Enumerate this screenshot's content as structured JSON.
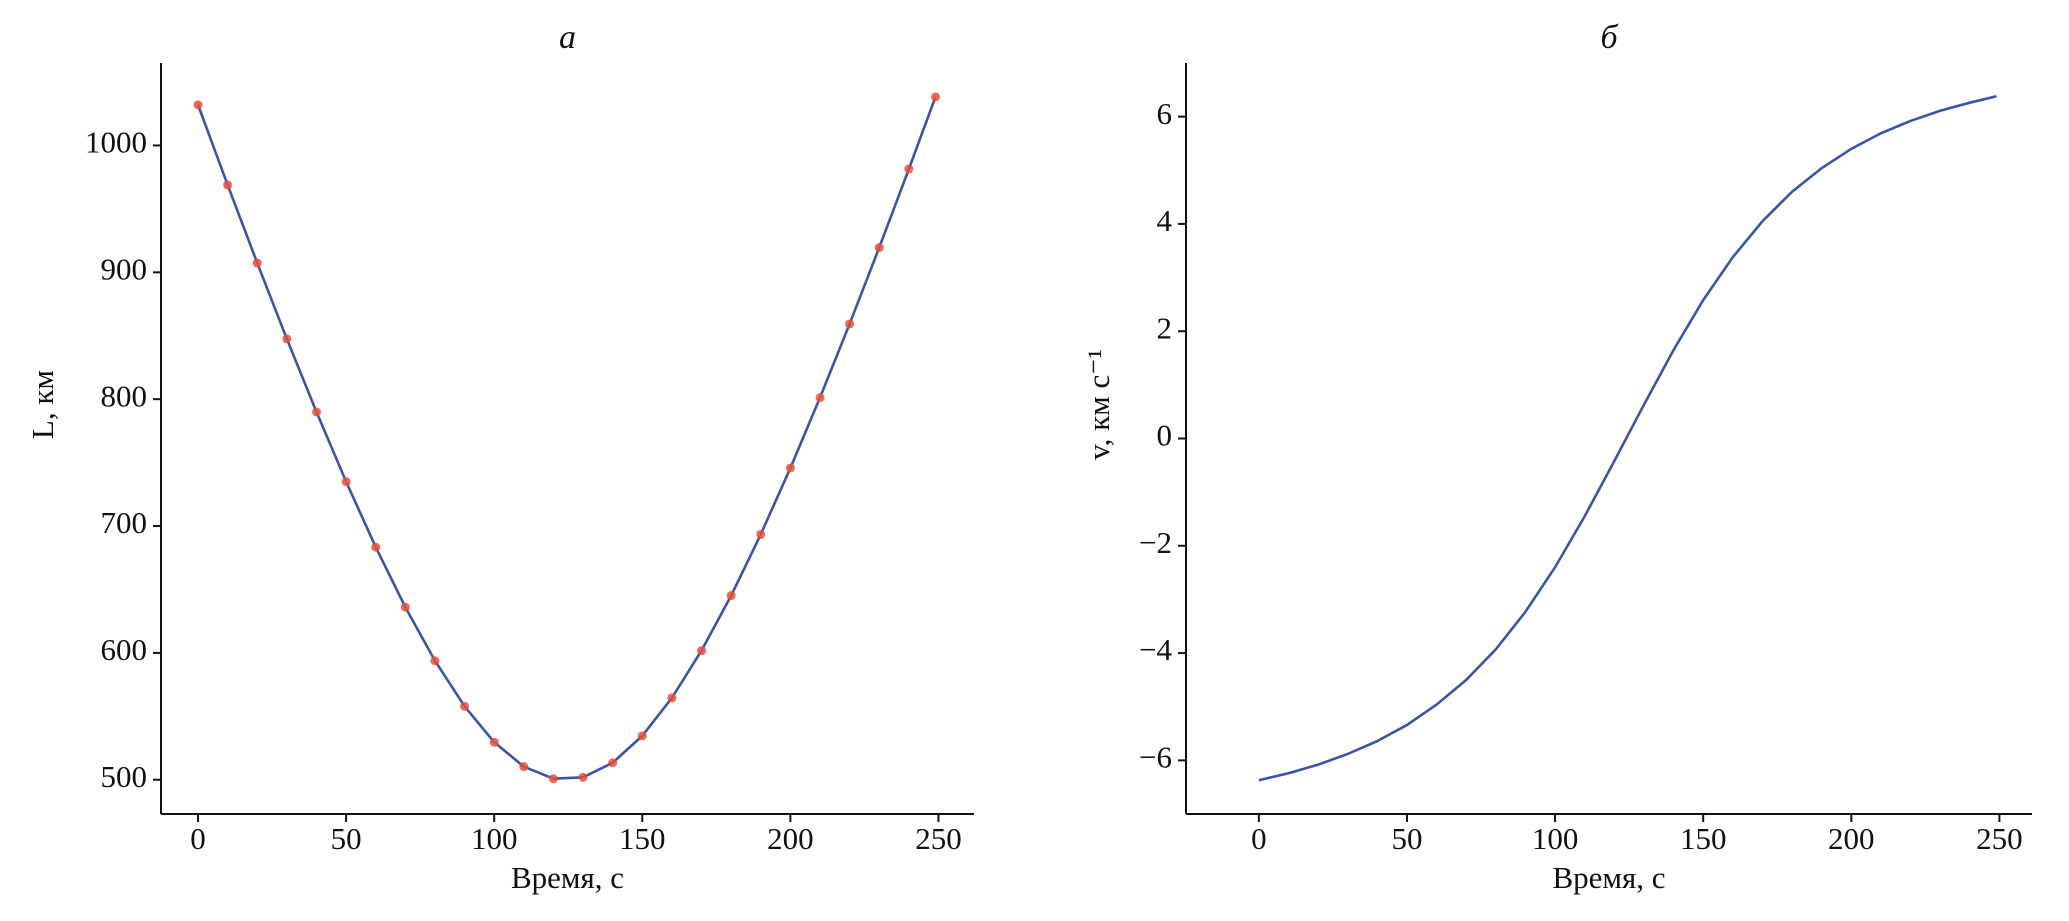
{
  "chart_data": [
    {
      "type": "line",
      "title": "а",
      "xlabel": "Время, с",
      "ylabel": "L, км",
      "x": [
        0,
        10,
        20,
        30,
        40,
        50,
        60,
        70,
        80,
        90,
        100,
        110,
        120,
        130,
        140,
        150,
        160,
        170,
        180,
        190,
        200,
        210,
        220,
        230,
        240,
        249
      ],
      "series": [
        {
          "color": "#3a55a6",
          "marker_color": "#e8503a",
          "values": [
            1032.0,
            968.9,
            907.3,
            847.5,
            789.9,
            735.0,
            683.4,
            636.0,
            593.8,
            557.9,
            529.6,
            510.3,
            500.8,
            501.9,
            513.4,
            534.6,
            564.5,
            601.8,
            645.1,
            693.4,
            745.7,
            801.2,
            859.3,
            919.5,
            981.4,
            1038.3
          ]
        }
      ],
      "xlim": [
        -12.5,
        262
      ],
      "ylim": [
        473,
        1065
      ],
      "xticks": [
        0,
        50,
        100,
        150,
        200,
        250
      ],
      "yticks": [
        500,
        600,
        700,
        800,
        900,
        1000
      ]
    },
    {
      "type": "line",
      "title": "б",
      "xlabel": "Время, с",
      "ylabel": "v, км с⁻¹",
      "x": [
        0,
        10,
        20,
        30,
        40,
        50,
        60,
        70,
        80,
        90,
        100,
        110,
        120,
        130,
        140,
        150,
        160,
        170,
        180,
        190,
        200,
        210,
        220,
        230,
        240,
        249
      ],
      "series": [
        {
          "color": "#3a55a6",
          "values": [
            -6.37,
            -6.24,
            -6.08,
            -5.88,
            -5.64,
            -5.34,
            -4.96,
            -4.5,
            -3.93,
            -3.23,
            -2.4,
            -1.45,
            -0.42,
            0.63,
            1.65,
            2.58,
            3.38,
            4.05,
            4.6,
            5.04,
            5.4,
            5.69,
            5.92,
            6.11,
            6.26,
            6.38
          ]
        }
      ],
      "xlim": [
        -24.6,
        261
      ],
      "ylim": [
        -7,
        7
      ],
      "xticks": [
        0,
        50,
        100,
        150,
        200,
        250
      ],
      "yticks": [
        {
          "value": -6,
          "label": "−6"
        },
        {
          "value": -4,
          "label": "−4"
        },
        {
          "value": -2,
          "label": "−2"
        },
        0,
        2,
        4,
        6
      ]
    }
  ]
}
